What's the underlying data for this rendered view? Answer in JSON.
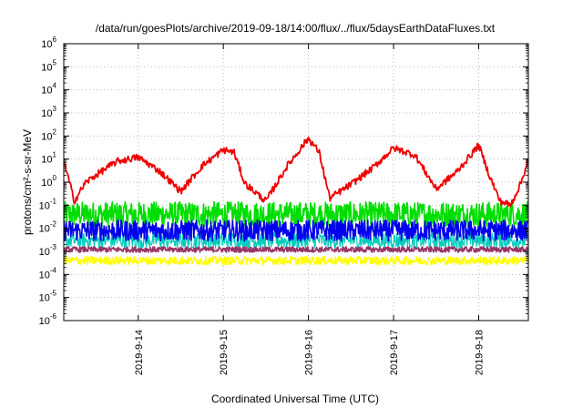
{
  "chart_data": {
    "type": "line",
    "title": "/data/run/goesPlots/archive/2019-09-18/14:00/flux/../flux/5daysEarthDataFluxes.txt",
    "xlabel": "Coordinated Universal Time (UTC)",
    "ylabel": "protons/cm²-s-sr-MeV",
    "x_scale": "time",
    "y_scale": "log",
    "xlim": [
      "2019-09-13T03:00",
      "2019-09-18T14:00"
    ],
    "ylim": [
      1e-06,
      1000000.0
    ],
    "x_ticks": [
      "2019-9-14",
      "2019-9-15",
      "2019-9-16",
      "2019-9-17",
      "2019-9-18"
    ],
    "y_ticks": [
      {
        "base": "10",
        "exp": "-6",
        "value": 1e-06
      },
      {
        "base": "10",
        "exp": "-5",
        "value": 1e-05
      },
      {
        "base": "10",
        "exp": "-4",
        "value": 0.0001
      },
      {
        "base": "10",
        "exp": "-3",
        "value": 0.001
      },
      {
        "base": "10",
        "exp": "-2",
        "value": 0.01
      },
      {
        "base": "10",
        "exp": "-1",
        "value": 0.1
      },
      {
        "base": "10",
        "exp": "0",
        "value": 1
      },
      {
        "base": "10",
        "exp": "1",
        "value": 10
      },
      {
        "base": "10",
        "exp": "2",
        "value": 100
      },
      {
        "base": "10",
        "exp": "3",
        "value": 1000
      },
      {
        "base": "10",
        "exp": "4",
        "value": 10000
      },
      {
        "base": "10",
        "exp": "5",
        "value": 100000
      },
      {
        "base": "10",
        "exp": "6",
        "value": 1000000
      }
    ],
    "grid": true,
    "series": [
      {
        "color": "#ee0000",
        "x": [
          "2019-09-13T03:00",
          "2019-09-13T06:00",
          "2019-09-13T09:00",
          "2019-09-13T12:00",
          "2019-09-13T18:00",
          "2019-09-14T00:00",
          "2019-09-14T06:00",
          "2019-09-14T12:00",
          "2019-09-14T18:00",
          "2019-09-15T00:00",
          "2019-09-15T03:00",
          "2019-09-15T06:00",
          "2019-09-15T12:00",
          "2019-09-15T18:00",
          "2019-09-16T00:00",
          "2019-09-16T03:00",
          "2019-09-16T06:00",
          "2019-09-16T12:00",
          "2019-09-16T18:00",
          "2019-09-17T00:00",
          "2019-09-17T06:00",
          "2019-09-17T12:00",
          "2019-09-17T18:00",
          "2019-09-18T00:00",
          "2019-09-18T03:00",
          "2019-09-18T06:00",
          "2019-09-18T09:00",
          "2019-09-18T12:00",
          "2019-09-18T14:00"
        ],
        "values": [
          8,
          0.15,
          0.9,
          2,
          8,
          12,
          3,
          0.4,
          5,
          25,
          20,
          0.9,
          0.15,
          5,
          80,
          20,
          0.2,
          0.8,
          4,
          30,
          15,
          0.5,
          3,
          40,
          2,
          0.15,
          0.1,
          1,
          10
        ]
      },
      {
        "color": "#00dd00",
        "x": [
          "2019-09-13T03:00",
          "2019-09-18T14:00"
        ],
        "values": [
          0.04,
          0.04
        ]
      },
      {
        "color": "#0000ee",
        "x": [
          "2019-09-13T03:00",
          "2019-09-18T14:00"
        ],
        "values": [
          0.008,
          0.008
        ]
      },
      {
        "color": "#00ccbb",
        "x": [
          "2019-09-13T03:00",
          "2019-09-18T14:00"
        ],
        "values": [
          0.003,
          0.003
        ]
      },
      {
        "color": "#993366",
        "x": [
          "2019-09-13T03:00",
          "2019-09-18T14:00"
        ],
        "values": [
          0.0012,
          0.0012
        ]
      },
      {
        "color": "#ffff00",
        "x": [
          "2019-09-13T03:00",
          "2019-09-18T14:00"
        ],
        "values": [
          0.0004,
          0.0004
        ]
      }
    ]
  }
}
